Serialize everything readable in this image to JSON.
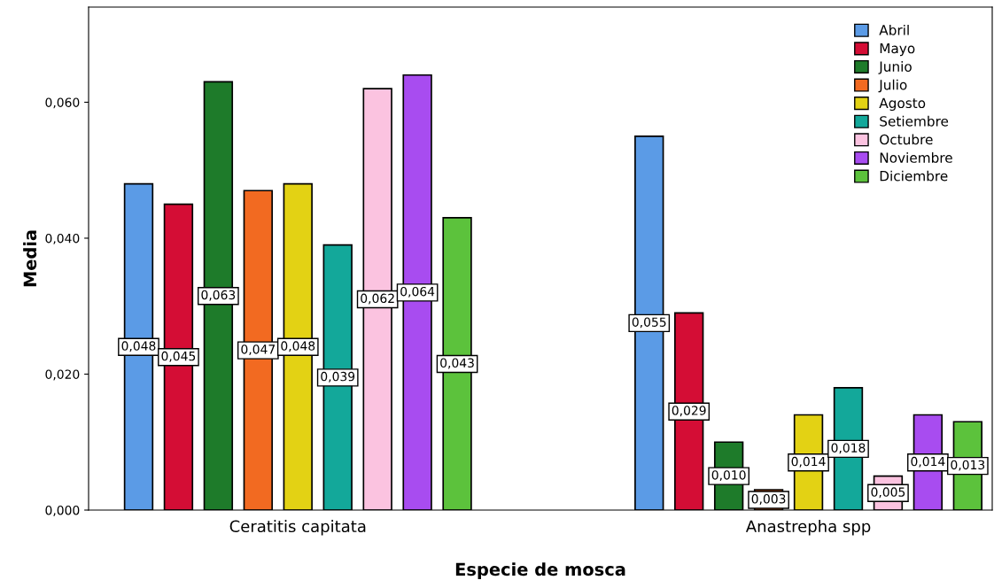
{
  "chart_data": {
    "type": "bar",
    "xlabel": "Especie de mosca",
    "ylabel": "Media",
    "categories": [
      "Ceratitis capitata",
      "Anastrepha spp"
    ],
    "series": [
      {
        "name": "Abril",
        "color": "#5b9be6",
        "values": [
          0.048,
          0.055
        ],
        "value_labels": [
          "0,048",
          "0,055"
        ]
      },
      {
        "name": "Mayo",
        "color": "#d40d35",
        "values": [
          0.045,
          0.029
        ],
        "value_labels": [
          "0,045",
          "0,029"
        ]
      },
      {
        "name": "Junio",
        "color": "#1e7b2a",
        "values": [
          0.063,
          0.01
        ],
        "value_labels": [
          "0,063",
          "0,010"
        ]
      },
      {
        "name": "Julio",
        "color": "#f26a21",
        "values": [
          0.047,
          0.003
        ],
        "value_labels": [
          "0,047",
          "0,003"
        ]
      },
      {
        "name": "Agosto",
        "color": "#e3d214",
        "values": [
          0.048,
          0.014
        ],
        "value_labels": [
          "0,048",
          "0,014"
        ]
      },
      {
        "name": "Setiembre",
        "color": "#13a89a",
        "values": [
          0.039,
          0.018
        ],
        "value_labels": [
          "0,039",
          "0,018"
        ]
      },
      {
        "name": "Octubre",
        "color": "#fbc3e0",
        "values": [
          0.062,
          0.005
        ],
        "value_labels": [
          "0,062",
          "0,005"
        ]
      },
      {
        "name": "Noviembre",
        "color": "#a84cf0",
        "values": [
          0.064,
          0.014
        ],
        "value_labels": [
          "0,064",
          "0,014"
        ]
      },
      {
        "name": "Diciembre",
        "color": "#5cc23c",
        "values": [
          0.043,
          0.013
        ],
        "value_labels": [
          "0,043",
          "0,013"
        ]
      }
    ],
    "ylim": [
      0,
      0.074
    ],
    "yticks": [
      {
        "value": 0,
        "label": "0,000"
      },
      {
        "value": 0.02,
        "label": "0,020"
      },
      {
        "value": 0.04,
        "label": "0,040"
      },
      {
        "value": 0.06,
        "label": "0,060"
      }
    ],
    "grid": false,
    "legend": "top right"
  }
}
